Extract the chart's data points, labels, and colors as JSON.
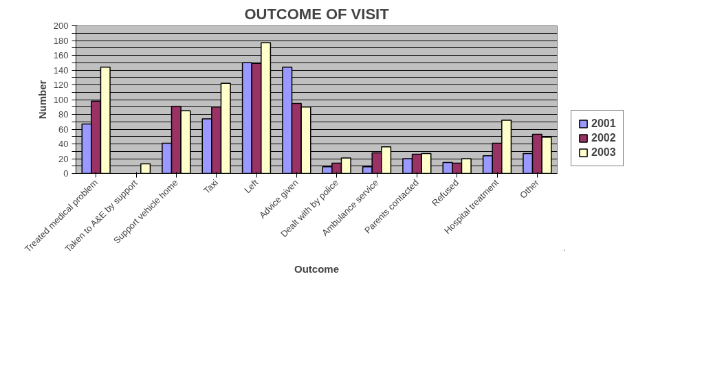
{
  "chart_data": {
    "type": "bar",
    "title": "OUTCOME OF VISIT",
    "xlabel": "Outcome",
    "ylabel": "Number",
    "categories": [
      "Treated medical problem",
      "Taken to A&E by support",
      "Support vehicle home",
      "Taxi",
      "Left",
      "Advice given",
      "Dealt with by police",
      "Ambulance service",
      "Parents contacted",
      "Refused",
      "Hospital treatment",
      "Other"
    ],
    "series": [
      {
        "name": "2001",
        "color": "#9999ff",
        "values": [
          67,
          null,
          41,
          74,
          150,
          144,
          9,
          9,
          20,
          15,
          24,
          27
        ]
      },
      {
        "name": "2002",
        "color": "#993366",
        "values": [
          98,
          null,
          91,
          90,
          149,
          95,
          14,
          28,
          26,
          14,
          41,
          53
        ]
      },
      {
        "name": "2003",
        "color": "#ffffcc",
        "values": [
          144,
          13,
          85,
          122,
          177,
          90,
          21,
          36,
          27,
          20,
          72,
          49
        ]
      }
    ],
    "ylim": [
      0,
      200
    ],
    "yticks": [
      0,
      {
        "value": 10,
        "label": null
      },
      20,
      {
        "value": 30,
        "label": null
      },
      40,
      {
        "value": 50,
        "label": null
      },
      60,
      {
        "value": 70,
        "label": null
      },
      80,
      {
        "value": 90,
        "label": null
      },
      100,
      {
        "value": 110,
        "label": null
      },
      120,
      {
        "value": 130,
        "label": null
      },
      140,
      {
        "value": 150,
        "label": null
      },
      160,
      {
        "value": 170,
        "label": null
      },
      180,
      {
        "value": 190,
        "label": null
      },
      200
    ],
    "grid": "y",
    "legend": "right"
  }
}
